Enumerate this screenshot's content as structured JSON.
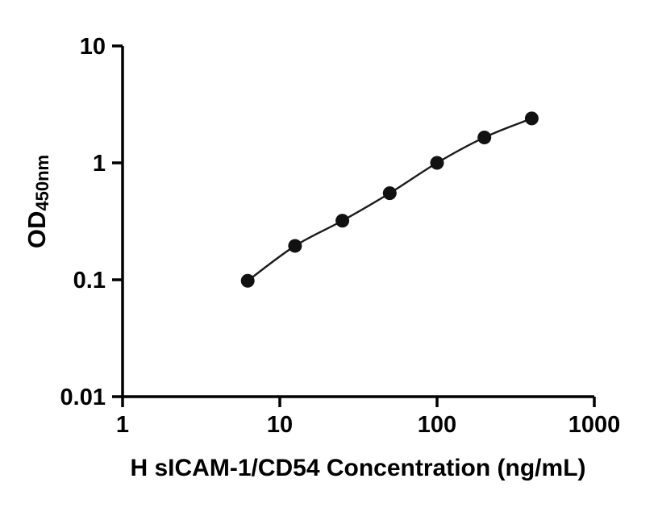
{
  "chart_data": {
    "type": "scatter",
    "log_x": true,
    "log_y": true,
    "x": [
      6.25,
      12.5,
      25,
      50,
      100,
      200,
      400
    ],
    "y": [
      0.098,
      0.195,
      0.32,
      0.55,
      1.0,
      1.65,
      2.4
    ],
    "xlim": [
      1,
      1000
    ],
    "ylim": [
      0.01,
      10
    ],
    "x_ticks": [
      1,
      10,
      100,
      1000
    ],
    "x_tick_labels": [
      "1",
      "10",
      "100",
      "1000"
    ],
    "y_ticks": [
      10,
      1,
      0.1,
      0.01
    ],
    "y_tick_labels": [
      "10",
      "1",
      "0.1",
      "0.01"
    ],
    "xlabel": "H sICAM-1/CD54 Concentration (ng/mL)",
    "ylabel_main": "OD",
    "ylabel_sub": "450nm",
    "title": "",
    "legend": "none",
    "grid": false,
    "line_style": "smooth fit line through points",
    "marker": "filled circle",
    "marker_color": "#111111",
    "line_color": "#1a1a1a",
    "axis_color": "#000000"
  }
}
